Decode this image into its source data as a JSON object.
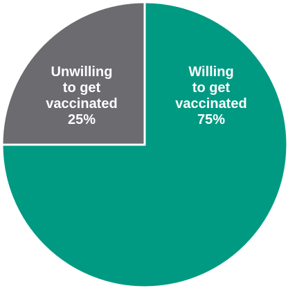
{
  "chart_data": {
    "type": "pie",
    "slices": [
      {
        "label_lines": [
          "Unwilling",
          "to get",
          "vaccinated"
        ],
        "value_label": "25%",
        "value": 25,
        "color": "#6b6b70"
      },
      {
        "label_lines": [
          "Willing",
          "to get",
          "vaccinated"
        ],
        "value_label": "75%",
        "value": 75,
        "color": "#009a82"
      }
    ],
    "title": "",
    "legend": "none"
  }
}
